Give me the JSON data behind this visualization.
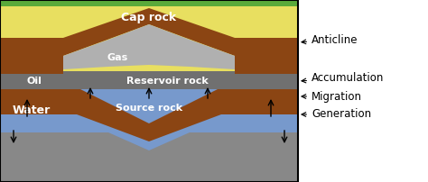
{
  "fig_width": 4.74,
  "fig_height": 2.02,
  "dpi": 100,
  "colors": {
    "green_top": "#5aaa3a",
    "yellow": "#e8df60",
    "brown": "#8B4513",
    "light_gray": "#b0b0b0",
    "dark_gray": "#707070",
    "blue_water": "#7799cc",
    "bottom_gray": "#888888",
    "black": "#000000",
    "white": "#ffffff",
    "bg_white": "#ffffff"
  },
  "labels": {
    "cap_rock": "Cap rock",
    "gas": "Gas",
    "oil": "Oil",
    "reservoir_rock": "Reservoir rock",
    "water": "Water",
    "source_rock": "Source rock",
    "anticline": "Anticline",
    "accumulation": "Accumulation",
    "migration": "Migration",
    "generation": "Generation"
  }
}
